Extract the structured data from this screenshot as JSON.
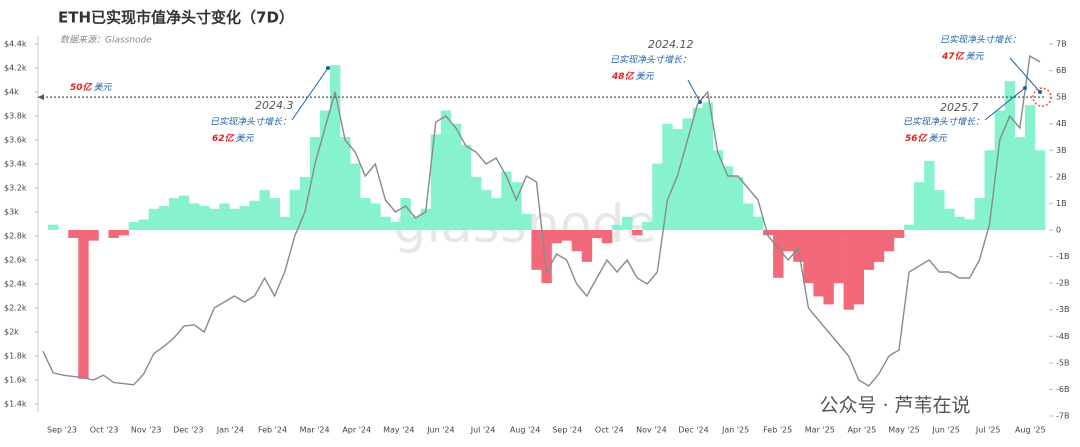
{
  "chart_data": {
    "type": "bar_line",
    "title": "ETH已实现市值净头寸变化（7D）",
    "subtitle": "数据来源：Glassnode",
    "watermark": "glassnode",
    "footer": "公众号 · 芦苇在说",
    "x_tick_labels": [
      "Sep '23",
      "Oct '23",
      "Nov '23",
      "Dec '23",
      "Jan '24",
      "Feb '24",
      "Mar '24",
      "Apr '24",
      "May '24",
      "Jun '24",
      "Jul '24",
      "Aug '24",
      "Sep '24",
      "Oct '24",
      "Nov '24",
      "Dec '24",
      "Jan '25",
      "Feb '25",
      "Mar '25",
      "Apr '25",
      "May '25",
      "Jun '25",
      "Jul '25",
      "Aug '25"
    ],
    "ylim": [
      1400,
      4400
    ],
    "yticks": [
      {
        "value": 1400,
        "label": "$1.4k"
      },
      {
        "value": 1600,
        "label": "$1.6k"
      },
      {
        "value": 1800,
        "label": "$1.8k"
      },
      {
        "value": 2000,
        "label": "$2k"
      },
      {
        "value": 2200,
        "label": "$2.2k"
      },
      {
        "value": 2400,
        "label": "$2.4k"
      },
      {
        "value": 2600,
        "label": "$2.6k"
      },
      {
        "value": 2800,
        "label": "$2.8k"
      },
      {
        "value": 3000,
        "label": "$3k"
      },
      {
        "value": 3200,
        "label": "$3.2k"
      },
      {
        "value": 3400,
        "label": "$3.4k"
      },
      {
        "value": 3600,
        "label": "$3.6k"
      },
      {
        "value": 3800,
        "label": "$3.8k"
      },
      {
        "value": 4000,
        "label": "$4k"
      },
      {
        "value": 4200,
        "label": "$4.2k"
      },
      {
        "value": 4400,
        "label": "$4.4k"
      }
    ],
    "y2lim": [
      -7,
      7
    ],
    "y2ticks": [
      {
        "value": 7,
        "label": "7B"
      },
      {
        "value": 6,
        "label": "6B"
      },
      {
        "value": 5,
        "label": "5B"
      },
      {
        "value": 4,
        "label": "4B"
      },
      {
        "value": 3,
        "label": "3B"
      },
      {
        "value": 2,
        "label": "2B"
      },
      {
        "value": 1,
        "label": "1B"
      },
      0,
      {
        "value": -1,
        "label": "-1B"
      },
      {
        "value": -2,
        "label": "-2B"
      },
      {
        "value": -3,
        "label": "-3B"
      },
      {
        "value": -4,
        "label": "-4B"
      },
      {
        "value": -5,
        "label": "-5B"
      },
      {
        "value": -6,
        "label": "-6B"
      },
      {
        "value": -7,
        "label": "-7B"
      }
    ],
    "series": [
      {
        "type": "line",
        "axis": "y",
        "color": "#8a8a8a",
        "values": [
          1840,
          1660,
          1640,
          1630,
          1620,
          1600,
          1640,
          1580,
          1570,
          1560,
          1650,
          1820,
          1880,
          1950,
          2050,
          2060,
          2000,
          2200,
          2250,
          2300,
          2250,
          2300,
          2450,
          2300,
          2500,
          2800,
          3000,
          3400,
          3700,
          4000,
          3600,
          3500,
          3300,
          3400,
          3100,
          3000,
          3050,
          2950,
          3000,
          3750,
          3800,
          3700,
          3550,
          3500,
          3400,
          3450,
          3300,
          3100,
          3300,
          3250,
          2500,
          2650,
          2600,
          2400,
          2300,
          2450,
          2600,
          2500,
          2600,
          2450,
          2400,
          2500,
          3100,
          3300,
          3600,
          3900,
          4000,
          3500,
          3300,
          3300,
          3200,
          3100,
          2800,
          2700,
          2600,
          2700,
          2200,
          2100,
          2000,
          1900,
          1800,
          1600,
          1550,
          1650,
          1800,
          1850,
          2500,
          2550,
          2600,
          2500,
          2500,
          2450,
          2450,
          2600,
          2900,
          3600,
          3800,
          3700,
          4300,
          4250
        ]
      },
      {
        "type": "bar",
        "axis": "y2",
        "color": "#86f3cc",
        "negative_color": "#f2697a",
        "values": [
          0,
          0.2,
          0,
          -0.3,
          -5.6,
          -0.4,
          0,
          -0.3,
          -0.2,
          0.3,
          0.4,
          0.8,
          0.9,
          1.2,
          1.3,
          1.0,
          0.9,
          0.8,
          1.0,
          0.8,
          0.9,
          1.1,
          1.5,
          1.2,
          0.5,
          1.5,
          2.0,
          3.5,
          4.5,
          6.2,
          3.5,
          2.5,
          1.2,
          1.0,
          0.5,
          0.3,
          1.2,
          0.5,
          0.8,
          3.6,
          4.5,
          4.0,
          3.2,
          2.0,
          1.5,
          1.2,
          2.2,
          1.8,
          0.6,
          -1.5,
          -2.0,
          -0.5,
          -0.4,
          -0.8,
          -1.2,
          -0.3,
          -0.5,
          0.2,
          0.5,
          -0.2,
          0.3,
          2.5,
          4.0,
          3.8,
          4.2,
          4.6,
          4.8,
          3.0,
          2.4,
          2.0,
          1.0,
          0.5,
          -0.2,
          -1.8,
          -0.8,
          -1.2,
          -2.0,
          -2.5,
          -2.8,
          -2.0,
          -3.0,
          -2.8,
          -1.5,
          -1.2,
          -0.8,
          -0.3,
          0.2,
          1.8,
          2.6,
          1.5,
          0.8,
          0.5,
          0.4,
          1.2,
          3.0,
          4.5,
          5.6,
          3.5,
          4.7,
          3.0
        ]
      }
    ],
    "reference_line": {
      "value": 5,
      "axis": "y2",
      "label": "50亿",
      "unit": "美元"
    },
    "annotations": [
      {
        "date": "2024.3",
        "text": "已实现净头寸增长：",
        "value": "62亿",
        "unit": "美元"
      },
      {
        "date": "2024.12",
        "text": "已实现净头寸增长：",
        "value": "48亿",
        "unit": "美元"
      },
      {
        "text": "已实现净头寸增长：",
        "value": "47亿",
        "unit": "美元"
      },
      {
        "date": "2025.7",
        "text": "已实现净头寸增长：",
        "value": "56亿",
        "unit": "美元"
      }
    ]
  }
}
